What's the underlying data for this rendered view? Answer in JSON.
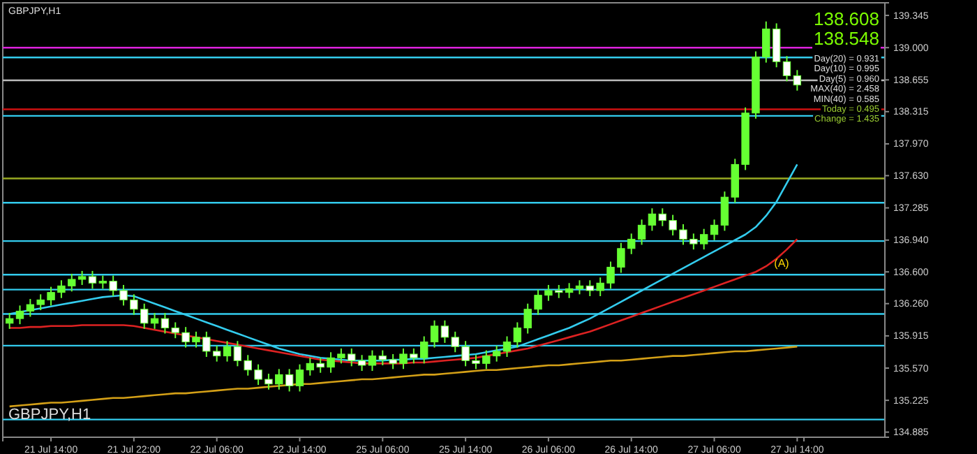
{
  "chart_data": {
    "type": "candlestick",
    "title": "GBPJPY,H1",
    "categories": [
      null,
      null,
      null,
      null,
      "21 Jul 14:00",
      null,
      null,
      null,
      null,
      null,
      null,
      null,
      "21 Jul 22:00",
      null,
      null,
      null,
      null,
      null,
      null,
      null,
      "22 Jul 06:00",
      null,
      null,
      null,
      null,
      null,
      null,
      null,
      "22 Jul 14:00",
      null,
      null,
      null,
      null,
      null,
      null,
      null,
      "25 Jul 06:00",
      null,
      null,
      null,
      null,
      null,
      null,
      null,
      "25 Jul 14:00",
      null,
      null,
      null,
      null,
      null,
      null,
      null,
      "26 Jul 06:00",
      null,
      null,
      null,
      null,
      null,
      null,
      null,
      "26 Jul 14:00",
      null,
      null,
      null,
      null,
      null,
      null,
      null,
      "27 Jul 06:00",
      null,
      null,
      null,
      null,
      null,
      null,
      null,
      "27 Jul 14:00"
    ],
    "ohlc": [
      [
        136.05,
        136.16,
        135.99,
        136.1
      ],
      [
        136.1,
        136.24,
        136.04,
        136.18
      ],
      [
        136.18,
        136.31,
        136.12,
        136.25
      ],
      [
        136.25,
        136.36,
        136.19,
        136.3
      ],
      [
        136.3,
        136.44,
        136.24,
        136.38
      ],
      [
        136.38,
        136.51,
        136.32,
        136.45
      ],
      [
        136.45,
        136.58,
        136.39,
        136.52
      ],
      [
        136.52,
        136.61,
        136.46,
        136.55
      ],
      [
        136.55,
        136.61,
        136.42,
        136.48
      ],
      [
        136.48,
        136.56,
        136.42,
        136.5
      ],
      [
        136.5,
        136.56,
        136.34,
        136.4
      ],
      [
        136.4,
        136.46,
        136.24,
        136.3
      ],
      [
        136.3,
        136.36,
        136.14,
        136.2
      ],
      [
        136.2,
        136.26,
        135.99,
        136.05
      ],
      [
        136.05,
        136.16,
        135.99,
        136.1
      ],
      [
        136.1,
        136.16,
        135.94,
        136.0
      ],
      [
        136.0,
        136.06,
        135.89,
        135.95
      ],
      [
        135.95,
        136.01,
        135.79,
        135.85
      ],
      [
        135.85,
        135.96,
        135.79,
        135.9
      ],
      [
        135.9,
        135.96,
        135.69,
        135.75
      ],
      [
        135.75,
        135.81,
        135.64,
        135.7
      ],
      [
        135.7,
        135.86,
        135.64,
        135.8
      ],
      [
        135.8,
        135.86,
        135.59,
        135.65
      ],
      [
        135.65,
        135.71,
        135.49,
        135.55
      ],
      [
        135.55,
        135.61,
        135.39,
        135.45
      ],
      [
        135.45,
        135.51,
        135.34,
        135.4
      ],
      [
        135.4,
        135.56,
        135.34,
        135.5
      ],
      [
        135.5,
        135.56,
        135.32,
        135.38
      ],
      [
        135.38,
        135.61,
        135.32,
        135.55
      ],
      [
        135.55,
        135.68,
        135.49,
        135.62
      ],
      [
        135.62,
        135.68,
        135.52,
        135.58
      ],
      [
        135.58,
        135.74,
        135.52,
        135.68
      ],
      [
        135.68,
        135.78,
        135.62,
        135.72
      ],
      [
        135.72,
        135.78,
        135.59,
        135.65
      ],
      [
        135.65,
        135.71,
        135.54,
        135.6
      ],
      [
        135.6,
        135.76,
        135.54,
        135.7
      ],
      [
        135.7,
        135.76,
        135.6,
        135.66
      ],
      [
        135.66,
        135.72,
        135.56,
        135.62
      ],
      [
        135.62,
        135.78,
        135.56,
        135.72
      ],
      [
        135.72,
        135.78,
        135.62,
        135.68
      ],
      [
        135.68,
        135.91,
        135.62,
        135.85
      ],
      [
        135.85,
        136.08,
        135.79,
        136.02
      ],
      [
        136.02,
        136.08,
        135.84,
        135.9
      ],
      [
        135.9,
        135.96,
        135.74,
        135.8
      ],
      [
        135.8,
        135.86,
        135.59,
        135.65
      ],
      [
        135.65,
        135.71,
        135.56,
        135.62
      ],
      [
        135.62,
        135.76,
        135.56,
        135.7
      ],
      [
        135.7,
        135.81,
        135.64,
        135.75
      ],
      [
        135.75,
        135.91,
        135.69,
        135.85
      ],
      [
        135.85,
        136.06,
        135.79,
        136.0
      ],
      [
        136.0,
        136.26,
        135.94,
        136.2
      ],
      [
        136.2,
        136.41,
        136.14,
        136.35
      ],
      [
        136.35,
        136.46,
        136.29,
        136.4
      ],
      [
        136.4,
        136.46,
        136.32,
        136.38
      ],
      [
        136.38,
        136.48,
        136.32,
        136.42
      ],
      [
        136.42,
        136.51,
        136.36,
        136.45
      ],
      [
        136.45,
        136.51,
        136.34,
        136.4
      ],
      [
        136.4,
        136.54,
        136.34,
        136.48
      ],
      [
        136.48,
        136.71,
        136.42,
        136.65
      ],
      [
        136.65,
        136.91,
        136.59,
        136.85
      ],
      [
        136.85,
        137.01,
        136.79,
        136.95
      ],
      [
        136.95,
        137.16,
        136.89,
        137.1
      ],
      [
        137.1,
        137.28,
        137.04,
        137.22
      ],
      [
        137.22,
        137.28,
        137.09,
        137.15
      ],
      [
        137.15,
        137.21,
        136.99,
        137.05
      ],
      [
        137.05,
        137.11,
        136.89,
        136.95
      ],
      [
        136.95,
        137.01,
        136.84,
        136.9
      ],
      [
        136.9,
        137.06,
        136.84,
        137.0
      ],
      [
        137.0,
        137.16,
        136.94,
        137.1
      ],
      [
        137.1,
        137.46,
        137.04,
        137.4
      ],
      [
        137.4,
        137.81,
        137.34,
        137.75
      ],
      [
        137.75,
        138.36,
        137.69,
        138.3
      ],
      [
        138.3,
        138.96,
        138.24,
        138.9
      ],
      [
        138.9,
        139.28,
        138.84,
        139.2
      ],
      [
        139.2,
        139.26,
        138.79,
        138.85
      ],
      [
        138.85,
        138.91,
        138.64,
        138.7
      ],
      [
        138.7,
        138.76,
        138.54,
        138.6
      ]
    ],
    "color": "#66ff33",
    "series": [
      {
        "type": "line",
        "color": "#33ccee",
        "values": [
          136.15,
          136.17,
          136.19,
          136.21,
          136.23,
          136.25,
          136.27,
          136.29,
          136.31,
          136.33,
          136.34,
          136.35,
          136.34,
          136.3,
          136.26,
          136.22,
          136.18,
          136.14,
          136.1,
          136.06,
          136.02,
          135.98,
          135.94,
          135.9,
          135.86,
          135.82,
          135.78,
          135.75,
          135.72,
          135.7,
          135.68,
          135.67,
          135.66,
          135.65,
          135.65,
          135.65,
          135.65,
          135.66,
          135.66,
          135.67,
          135.67,
          135.68,
          135.69,
          135.7,
          135.71,
          135.72,
          135.74,
          135.76,
          135.78,
          135.8,
          135.84,
          135.88,
          135.92,
          135.96,
          136.0,
          136.05,
          136.1,
          136.16,
          136.22,
          136.28,
          136.34,
          136.4,
          136.46,
          136.52,
          136.58,
          136.64,
          136.7,
          136.76,
          136.82,
          136.88,
          136.94,
          137.0,
          137.08,
          137.2,
          137.35,
          137.55,
          137.75
        ]
      },
      {
        "type": "line",
        "color": "#dd2222",
        "values": [
          136.0,
          136.0,
          136.01,
          136.01,
          136.02,
          136.02,
          136.02,
          136.03,
          136.03,
          136.03,
          136.03,
          136.03,
          136.02,
          136.0,
          135.98,
          135.96,
          135.94,
          135.92,
          135.9,
          135.88,
          135.86,
          135.84,
          135.82,
          135.8,
          135.78,
          135.76,
          135.74,
          135.72,
          135.7,
          135.68,
          135.66,
          135.65,
          135.64,
          135.63,
          135.62,
          135.62,
          135.62,
          135.62,
          135.62,
          135.63,
          135.63,
          135.64,
          135.65,
          135.66,
          135.67,
          135.68,
          135.7,
          135.72,
          135.74,
          135.76,
          135.78,
          135.81,
          135.84,
          135.87,
          135.9,
          135.93,
          135.96,
          136.0,
          136.04,
          136.08,
          136.12,
          136.16,
          136.2,
          136.24,
          136.28,
          136.32,
          136.36,
          136.4,
          136.44,
          136.48,
          136.52,
          136.56,
          136.6,
          136.66,
          136.74,
          136.84,
          136.95
        ]
      },
      {
        "type": "line",
        "color": "#d4a017",
        "values": [
          135.16,
          135.17,
          135.18,
          135.19,
          135.2,
          135.2,
          135.21,
          135.22,
          135.23,
          135.24,
          135.25,
          135.25,
          135.26,
          135.27,
          135.28,
          135.29,
          135.3,
          135.3,
          135.31,
          135.32,
          135.33,
          135.34,
          135.35,
          135.35,
          135.36,
          135.37,
          135.38,
          135.39,
          135.4,
          135.4,
          135.41,
          135.42,
          135.43,
          135.44,
          135.45,
          135.45,
          135.46,
          135.47,
          135.48,
          135.49,
          135.5,
          135.5,
          135.51,
          135.52,
          135.53,
          135.54,
          135.55,
          135.55,
          135.56,
          135.57,
          135.58,
          135.59,
          135.6,
          135.6,
          135.61,
          135.62,
          135.63,
          135.64,
          135.65,
          135.65,
          135.66,
          135.67,
          135.68,
          135.69,
          135.7,
          135.7,
          135.71,
          135.72,
          135.73,
          135.74,
          135.75,
          135.75,
          135.76,
          135.77,
          135.78,
          135.79,
          135.8
        ]
      }
    ],
    "ylim": [
      134.83,
      139.48
    ],
    "yticks": [
      {
        "value": 134.885,
        "label": "134.885"
      },
      {
        "value": 135.225,
        "label": "135.225"
      },
      {
        "value": 135.57,
        "label": "135.570"
      },
      {
        "value": 135.915,
        "label": "135.915"
      },
      {
        "value": 136.26,
        "label": "136.260"
      },
      {
        "value": 136.6,
        "label": "136.600"
      },
      {
        "value": 136.94,
        "label": "136.940"
      },
      {
        "value": 137.285,
        "label": "137.285"
      },
      {
        "value": 137.63,
        "label": "137.630"
      },
      {
        "value": 137.97,
        "label": "137.970"
      },
      {
        "value": 138.315,
        "label": "138.315"
      },
      {
        "value": 138.655,
        "label": "138.655"
      },
      {
        "value": 139.0,
        "label": "139.000"
      },
      {
        "value": 139.345,
        "label": "139.345"
      }
    ],
    "ref_lines": [
      {
        "axis": "y",
        "value": 139.0,
        "color": "#dd22dd"
      },
      {
        "axis": "y",
        "value": 138.895,
        "color": "#33ccee"
      },
      {
        "axis": "y",
        "value": 138.65,
        "color": "#bbbbbb"
      },
      {
        "axis": "y",
        "value": 138.34,
        "color": "#cc1111"
      },
      {
        "axis": "y",
        "value": 138.27,
        "color": "#33ccee"
      },
      {
        "axis": "y",
        "value": 137.6,
        "color": "#99aa22"
      },
      {
        "axis": "y",
        "value": 137.34,
        "color": "#33ccee"
      },
      {
        "axis": "y",
        "value": 136.93,
        "color": "#33ccee"
      },
      {
        "axis": "y",
        "value": 136.57,
        "color": "#33ccee"
      },
      {
        "axis": "y",
        "value": 136.41,
        "color": "#33ccee"
      },
      {
        "axis": "y",
        "value": 136.15,
        "color": "#33ccee"
      },
      {
        "axis": "y",
        "value": 135.81,
        "color": "#33ccee"
      },
      {
        "axis": "y",
        "value": 135.02,
        "color": "#33ccee"
      }
    ],
    "annotations": [
      "GBPJPY,H1",
      "138.608",
      "138.548",
      "Day(20) = 0.931",
      "Day(10) = 0.995",
      "Day(5) = 0.960",
      "MAX(40) = 2.458",
      "MIN(40) = 0.585",
      "Today = 0.495",
      "Change = 1.435",
      "(A)"
    ],
    "grid": false
  }
}
